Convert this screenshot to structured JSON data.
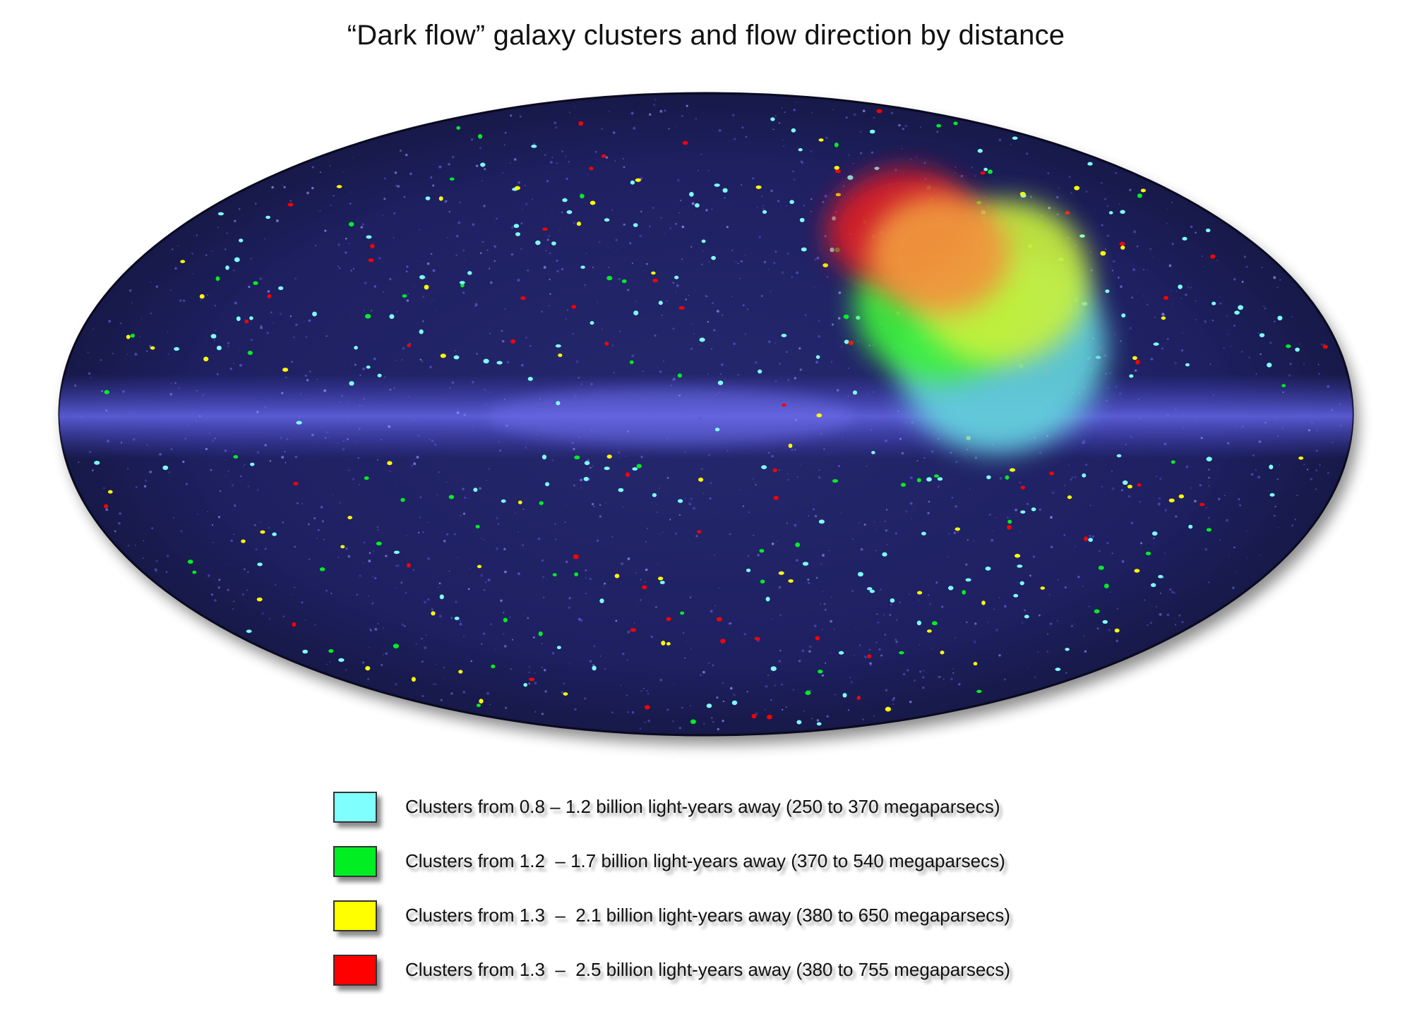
{
  "title": "“Dark flow” galaxy clusters and flow direction by distance",
  "map": {
    "projection": "Aitoff (all-sky)",
    "background_color": "#1c1e5a",
    "galactic_band_color": "#5a5ad8",
    "flow_direction_blobs": [
      {
        "color": "#64d2dc",
        "distance": "0.8 – 1.2"
      },
      {
        "color": "#3cf03c",
        "distance": "1.2 – 1.7"
      },
      {
        "color": "#c8f03c",
        "distance": "1.3 – 2.1"
      },
      {
        "color": "#dc1e28",
        "distance": "1.3 – 2.5"
      },
      {
        "color": "#f0963c",
        "distance": "overlap"
      }
    ]
  },
  "legend": [
    {
      "color": "#80ffff",
      "label": "Clusters from 0.8 – 1.2 billion light-years away (250 to 370 megaparsecs)"
    },
    {
      "color": "#00ee22",
      "label": "Clusters from 1.2  – 1.7 billion light-years away (370 to 540 megaparsecs)"
    },
    {
      "color": "#ffff00",
      "label": "Clusters from 1.3  –  2.1 billion light-years away (380 to 650 megaparsecs)"
    },
    {
      "color": "#ff0000",
      "label": "Clusters from 1.3  –  2.5 billion light-years away (380 to 755 megaparsecs)"
    }
  ]
}
